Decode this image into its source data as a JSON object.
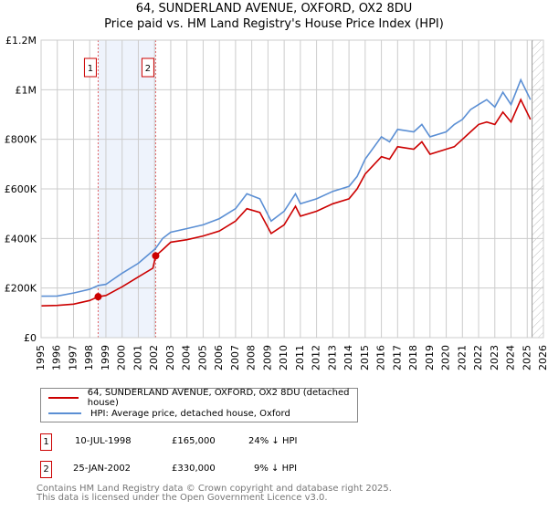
{
  "title_line1": "64, SUNDERLAND AVENUE, OXFORD, OX2 8DU",
  "title_line2": "Price paid vs. HM Land Registry's House Price Index (HPI)",
  "chart_data": {
    "type": "line",
    "title": "64, SUNDERLAND AVENUE, OXFORD, OX2 8DU — Price paid vs. HM Land Registry's House Price Index (HPI)",
    "xlim": [
      1995,
      2026
    ],
    "ylim": [
      0,
      1200000
    ],
    "x_ticks": [
      1995,
      1996,
      1997,
      1998,
      1999,
      2000,
      2001,
      2002,
      2003,
      2004,
      2005,
      2006,
      2007,
      2008,
      2009,
      2010,
      2011,
      2012,
      2013,
      2014,
      2015,
      2016,
      2017,
      2018,
      2019,
      2020,
      2021,
      2022,
      2023,
      2024,
      2025,
      2026
    ],
    "y_ticks": [
      {
        "v": 0,
        "label": "£0"
      },
      {
        "v": 200000,
        "label": "£200K"
      },
      {
        "v": 400000,
        "label": "£400K"
      },
      {
        "v": 600000,
        "label": "£600K"
      },
      {
        "v": 800000,
        "label": "£800K"
      },
      {
        "v": 1000000,
        "label": "£1M"
      },
      {
        "v": 1200000,
        "label": "£1.2M"
      }
    ],
    "grid": true,
    "shaded_range": [
      1998.52,
      2002.07
    ],
    "forecast_hatch_from": 2025.3,
    "series": [
      {
        "name": "64, SUNDERLAND AVENUE, OXFORD, OX2 8DU (detached house)",
        "color": "#cc0000",
        "x": [
          1995,
          1996,
          1997,
          1998,
          1998.52,
          1999,
          2000,
          2001,
          2001.9,
          2002.07,
          2002.5,
          2003,
          2004,
          2005,
          2006,
          2007,
          2007.7,
          2008.5,
          2009.2,
          2010,
          2010.7,
          2011,
          2012,
          2013,
          2014,
          2014.5,
          2015,
          2016,
          2016.5,
          2017,
          2018,
          2018.5,
          2019,
          2020,
          2020.5,
          2021,
          2021.5,
          2022,
          2022.5,
          2023,
          2023.5,
          2024,
          2024.6,
          2025.2
        ],
        "y": [
          128000,
          130000,
          135000,
          150000,
          165000,
          170000,
          205000,
          245000,
          280000,
          330000,
          355000,
          385000,
          395000,
          410000,
          430000,
          470000,
          520000,
          505000,
          420000,
          455000,
          530000,
          490000,
          510000,
          540000,
          560000,
          600000,
          660000,
          730000,
          720000,
          770000,
          760000,
          790000,
          740000,
          760000,
          770000,
          800000,
          830000,
          860000,
          870000,
          860000,
          910000,
          870000,
          960000,
          880000
        ]
      },
      {
        "name": "HPI: Average price, detached house, Oxford",
        "color": "#5b8fd4",
        "x": [
          1995,
          1996,
          1997,
          1998,
          1998.52,
          1999,
          2000,
          2001,
          2001.9,
          2002.07,
          2002.5,
          2003,
          2004,
          2005,
          2006,
          2007,
          2007.7,
          2008.5,
          2009.2,
          2010,
          2010.7,
          2011,
          2012,
          2013,
          2014,
          2014.5,
          2015,
          2016,
          2016.5,
          2017,
          2018,
          2018.5,
          2019,
          2020,
          2020.5,
          2021,
          2021.5,
          2022,
          2022.5,
          2023,
          2023.5,
          2024,
          2024.6,
          2025.2
        ],
        "y": [
          167000,
          168000,
          180000,
          195000,
          210000,
          215000,
          260000,
          300000,
          350000,
          360000,
          400000,
          425000,
          440000,
          455000,
          480000,
          520000,
          580000,
          560000,
          470000,
          510000,
          580000,
          540000,
          560000,
          590000,
          610000,
          650000,
          720000,
          810000,
          790000,
          840000,
          830000,
          860000,
          810000,
          830000,
          860000,
          880000,
          920000,
          940000,
          960000,
          930000,
          990000,
          940000,
          1040000,
          960000
        ]
      }
    ],
    "sales": [
      {
        "label": "1",
        "x": 1998.52,
        "y": 165000
      },
      {
        "label": "2",
        "x": 2002.07,
        "y": 330000
      }
    ]
  },
  "legend": {
    "property": "64, SUNDERLAND AVENUE, OXFORD, OX2 8DU (detached house)",
    "hpi": "HPI: Average price, detached house, Oxford"
  },
  "transactions": [
    {
      "num": "1",
      "date": "10-JUL-1998",
      "price": "£165,000",
      "hpi": "24% ↓ HPI"
    },
    {
      "num": "2",
      "date": "25-JAN-2002",
      "price": "£330,000",
      "hpi": "9% ↓ HPI"
    }
  ],
  "footer": {
    "line1": "Contains HM Land Registry data © Crown copyright and database right 2025.",
    "line2": "This data is licensed under the Open Government Licence v3.0."
  }
}
